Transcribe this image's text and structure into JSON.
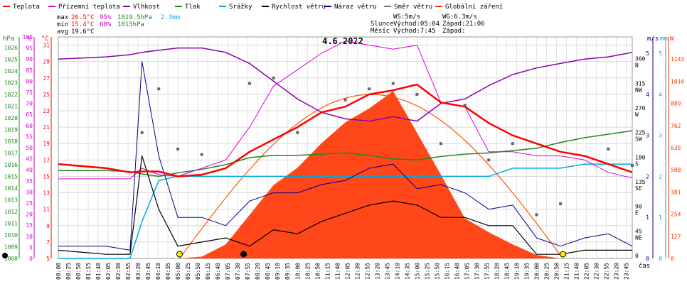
{
  "chart_data": {
    "type": "line",
    "title": "4.6.2022",
    "legend": [
      {
        "name": "Teplota",
        "color": "#ff0000"
      },
      {
        "name": "Přízemní teplota",
        "color": "#dd00dd"
      },
      {
        "name": "Vlhkost",
        "color": "#8800aa"
      },
      {
        "name": "Tlak",
        "color": "#228822"
      },
      {
        "name": "Srážky",
        "color": "#00aadd"
      },
      {
        "name": "Rychlost větru",
        "color": "#000000"
      },
      {
        "name": "Náraz větru",
        "color": "#000088"
      },
      {
        "name": "Směr větru",
        "color": "#777777"
      },
      {
        "name": "Globální záření",
        "color": "#ff3300"
      }
    ],
    "stats": {
      "max": {
        "label": "max",
        "temp": "26.5°C",
        "hum": "95%",
        "press": "1019.5hPa",
        "rain": "2.3mm"
      },
      "min": {
        "label": "min",
        "temp": "15.4°C",
        "hum": "60%",
        "press": "1015hPa"
      },
      "avg": {
        "label": "avg",
        "temp": "19.6°C"
      }
    },
    "info": {
      "ws": "WS:5m/s",
      "wg": "WG:6.3m/s",
      "slunce_label": "Slunce",
      "slunce_rise": "Východ:05:04",
      "slunce_set": "Západ:21:06",
      "mesic_label": "Měsíc",
      "mesic_rise": "Východ:7:45",
      "mesic_set": "Západ:"
    },
    "axes": {
      "hpa": {
        "label": "hPa",
        "ticks": [
          "1008",
          "1009",
          "1010",
          "1011",
          "1012",
          "1013",
          "1014",
          "1015",
          "1016",
          "1017",
          "1018",
          "1019",
          "1020",
          "1021",
          "1022",
          "1023",
          "1024",
          "1025",
          "1026"
        ],
        "range": [
          1008,
          1026.9
        ]
      },
      "hum": {
        "label": "%",
        "ticks": [
          "0",
          "5",
          "10",
          "15",
          "20",
          "25",
          "30",
          "35",
          "40",
          "45",
          "50",
          "55",
          "60",
          "65",
          "70",
          "75",
          "80",
          "85",
          "90",
          "95",
          "100"
        ],
        "range": [
          0,
          100
        ]
      },
      "temp": {
        "label": "°C",
        "ticks": [
          "5",
          "7",
          "9",
          "11",
          "13",
          "15",
          "17",
          "19",
          "21",
          "23",
          "25",
          "27",
          "29",
          "31"
        ],
        "range": [
          5,
          32
        ]
      },
      "dir": {
        "ticks": [
          "0",
          "45",
          "90",
          "135",
          "180",
          "225",
          "270",
          "315",
          "360"
        ],
        "compass": [
          "",
          "NE",
          "E",
          "SE",
          "S",
          "SW",
          "W",
          "NW",
          "N"
        ],
        "range": [
          0,
          405
        ]
      },
      "wind": {
        "label": "m/s",
        "ticks": [
          "0",
          "1",
          "2",
          "3",
          "4",
          "5"
        ],
        "range": [
          0,
          5.4
        ]
      },
      "rain": {
        "label": "mm",
        "ticks": [
          "0",
          "1",
          "2",
          "3",
          "4",
          "5"
        ],
        "range": [
          0,
          5.4
        ]
      },
      "rad": {
        "label": "W",
        "ticks": [
          "0",
          "127",
          "254",
          "381",
          "508",
          "635",
          "762",
          "889",
          "1016",
          "1143"
        ],
        "range": [
          0,
          1270
        ]
      },
      "time": {
        "label": "čas",
        "ticks": [
          "00:00",
          "00:25",
          "00:50",
          "01:15",
          "01:40",
          "02:05",
          "02:30",
          "02:55",
          "03:20",
          "03:45",
          "04:10",
          "04:35",
          "05:00",
          "05:25",
          "05:50",
          "06:15",
          "06:40",
          "07:05",
          "07:30",
          "07:55",
          "08:20",
          "08:45",
          "09:10",
          "09:35",
          "10:00",
          "10:25",
          "10:50",
          "11:15",
          "11:40",
          "12:05",
          "12:30",
          "12:55",
          "13:20",
          "13:45",
          "14:10",
          "14:35",
          "15:00",
          "15:25",
          "15:50",
          "16:15",
          "16:40",
          "17:05",
          "17:30",
          "17:55",
          "18:20",
          "18:45",
          "19:10",
          "19:35",
          "20:00",
          "20:25",
          "20:50",
          "21:15",
          "21:40",
          "22:05",
          "22:30",
          "22:55",
          "23:20",
          "23:45"
        ]
      }
    },
    "x_hours": [
      0,
      2,
      3,
      3.5,
      4.2,
      5,
      6,
      7,
      8,
      9,
      10,
      11,
      12,
      13,
      14,
      15,
      16,
      17,
      18,
      19,
      20,
      21,
      22,
      23,
      24
    ],
    "series": [
      {
        "name": "Teplota",
        "values": [
          16.5,
          16,
          15.5,
          15.6,
          15.6,
          15,
          15.2,
          16,
          18,
          19.5,
          21,
          22.8,
          23.5,
          25,
          25.5,
          26.2,
          24,
          23.5,
          21.5,
          20,
          19,
          18,
          17.5,
          16.5,
          15.5
        ]
      },
      {
        "name": "Přízemní teplota",
        "values": [
          14.7,
          14.7,
          14.7,
          16,
          15.2,
          15,
          16,
          17,
          21,
          26,
          28,
          30,
          31.5,
          31,
          30.5,
          31,
          24,
          23.5,
          18,
          18,
          17.5,
          17.5,
          17,
          15.5,
          14.8
        ]
      },
      {
        "name": "Vlhkost",
        "values": [
          90,
          91,
          92,
          93,
          94,
          95,
          95,
          93,
          88,
          80,
          72,
          66,
          63,
          62,
          64,
          62,
          70,
          72,
          78,
          83,
          86,
          88,
          90,
          91,
          93
        ]
      },
      {
        "name": "Tlak",
        "values": [
          1015.5,
          1015.5,
          1015.4,
          1015.2,
          1015.0,
          1015.3,
          1015.6,
          1016.0,
          1016.6,
          1016.8,
          1016.8,
          1016.9,
          1017.0,
          1016.8,
          1016.5,
          1016.4,
          1016.7,
          1016.9,
          1017.0,
          1017.2,
          1017.4,
          1017.9,
          1018.3,
          1018.6,
          1018.9
        ]
      },
      {
        "name": "Srážky",
        "values": [
          0,
          0,
          0,
          0.9,
          1.9,
          2.0,
          2.0,
          2.0,
          2.0,
          2.0,
          2.0,
          2.0,
          2.0,
          2.0,
          2.0,
          2.0,
          2.0,
          2.0,
          2.0,
          2.2,
          2.2,
          2.2,
          2.3,
          2.3,
          2.3
        ]
      },
      {
        "name": "Rychlost větru",
        "values": [
          0.2,
          0.1,
          0.1,
          2.5,
          1.2,
          0.3,
          0.4,
          0.5,
          0.3,
          0.7,
          0.6,
          0.9,
          1.1,
          1.3,
          1.4,
          1.3,
          1.0,
          1.0,
          0.8,
          0.8,
          0.1,
          0.1,
          0.2,
          0.2,
          0.2
        ]
      },
      {
        "name": "Náraz větru",
        "values": [
          0.3,
          0.3,
          0.2,
          4.8,
          2.5,
          1.0,
          1.0,
          0.8,
          1.4,
          1.6,
          1.6,
          1.8,
          1.9,
          2.2,
          2.3,
          1.7,
          1.8,
          1.6,
          1.2,
          1.3,
          0.5,
          0.3,
          0.5,
          0.6,
          0.3
        ]
      },
      {
        "name": "Směr větru",
        "values": [
          null,
          null,
          null,
          230,
          310,
          200,
          190,
          null,
          320,
          330,
          230,
          190,
          290,
          310,
          320,
          300,
          210,
          280,
          180,
          210,
          80,
          100,
          null,
          200,
          170
        ]
      },
      {
        "name": "Globální záření",
        "values": [
          0,
          0,
          0,
          0,
          0,
          0,
          10,
          80,
          250,
          420,
          520,
          660,
          780,
          860,
          960,
          720,
          480,
          230,
          150,
          80,
          20,
          0,
          0,
          0,
          0
        ]
      }
    ]
  }
}
